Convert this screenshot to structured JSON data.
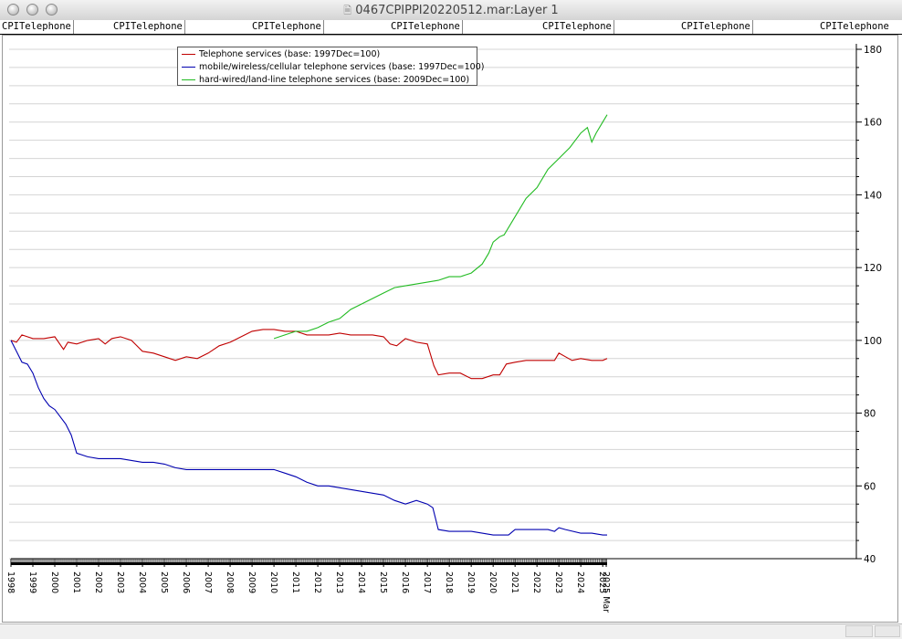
{
  "window": {
    "title": "0467CPIPPI20220512.mar:Layer 1",
    "tabs": [
      "CPITelephone",
      "CPITelephone",
      "CPITelephone",
      "CPITelephone",
      "CPITelephone",
      "CPITelephone",
      "CPITelephone"
    ]
  },
  "colors": {
    "telephone": "#c00000",
    "mobile": "#0000b0",
    "landline": "#22bb22",
    "grid": "#d4d4d4",
    "axis": "#000000"
  },
  "chart_data": {
    "type": "line",
    "y_ticks": [
      40,
      60,
      80,
      100,
      120,
      140,
      160,
      180
    ],
    "ylim": [
      40,
      180
    ],
    "xlim": [
      1998.0,
      2025.2
    ],
    "x_tick_labels": [
      "1998",
      "1999",
      "2000",
      "2001",
      "2002",
      "2003",
      "2004",
      "2005",
      "2006",
      "2007",
      "2008",
      "2009",
      "2010",
      "2011",
      "2012",
      "2013",
      "2014",
      "2015",
      "2016",
      "2017",
      "2018",
      "2019",
      "2020",
      "2021",
      "2022",
      "2023",
      "2024",
      "2025",
      "2025 Mar"
    ],
    "legend_position": "top-left",
    "grid": true,
    "series": [
      {
        "name": "Telephone services (base: 1997Dec=100)",
        "color_key": "telephone",
        "x": [
          1998.0,
          1998.25,
          1998.5,
          1998.75,
          1999.0,
          1999.5,
          2000.0,
          2000.4,
          2000.6,
          2001.0,
          2001.5,
          2002.0,
          2002.3,
          2002.6,
          2003.0,
          2003.5,
          2004.0,
          2004.5,
          2005.0,
          2005.5,
          2006.0,
          2006.5,
          2007.0,
          2007.5,
          2008.0,
          2008.5,
          2009.0,
          2009.5,
          2010.0,
          2010.5,
          2011.0,
          2011.5,
          2012.0,
          2012.5,
          2013.0,
          2013.5,
          2014.0,
          2014.5,
          2015.0,
          2015.3,
          2015.6,
          2016.0,
          2016.5,
          2017.0,
          2017.3,
          2017.5,
          2018.0,
          2018.5,
          2019.0,
          2019.5,
          2020.0,
          2020.3,
          2020.6,
          2021.0,
          2021.5,
          2022.0,
          2022.5,
          2022.8,
          2023.0,
          2023.3,
          2023.6,
          2024.0,
          2024.5,
          2025.0,
          2025.2
        ],
        "y": [
          100,
          99.5,
          101.5,
          101,
          100.5,
          100.5,
          101,
          97.5,
          99.5,
          99,
          100,
          100.5,
          99,
          100.5,
          101,
          100,
          97,
          96.5,
          95.5,
          94.5,
          95.5,
          95,
          96.5,
          98.5,
          99.5,
          101,
          102.5,
          103,
          103,
          102.5,
          102.5,
          101.5,
          101.5,
          101.5,
          102,
          101.5,
          101.5,
          101.5,
          101,
          99,
          98.5,
          100.5,
          99.5,
          99,
          93,
          90.5,
          91,
          91,
          89.5,
          89.5,
          90.5,
          90.5,
          93.5,
          94,
          94.5,
          94.5,
          94.5,
          94.5,
          96.5,
          95.5,
          94.5,
          95,
          94.5,
          94.5,
          95
        ]
      },
      {
        "name": "mobile/wireless/cellular telephone services (base: 1997Dec=100)",
        "color_key": "mobile",
        "x": [
          1998.0,
          1998.25,
          1998.5,
          1998.75,
          1999.0,
          1999.25,
          1999.5,
          1999.75,
          2000.0,
          2000.25,
          2000.5,
          2000.75,
          2001.0,
          2001.25,
          2001.5,
          2002.0,
          2002.5,
          2003.0,
          2003.5,
          2004.0,
          2004.5,
          2005.0,
          2005.5,
          2006.0,
          2006.5,
          2007.0,
          2007.5,
          2008.0,
          2008.5,
          2009.0,
          2009.5,
          2010.0,
          2010.5,
          2011.0,
          2011.5,
          2012.0,
          2012.5,
          2013.0,
          2013.5,
          2014.0,
          2014.5,
          2015.0,
          2015.5,
          2016.0,
          2016.5,
          2017.0,
          2017.25,
          2017.5,
          2018.0,
          2018.5,
          2019.0,
          2019.5,
          2020.0,
          2020.5,
          2020.7,
          2021.0,
          2021.5,
          2022.0,
          2022.5,
          2022.8,
          2023.0,
          2023.3,
          2024.0,
          2024.5,
          2025.0,
          2025.2
        ],
        "y": [
          100,
          97,
          94,
          93.5,
          91,
          87,
          84,
          82,
          81,
          79,
          77,
          74,
          69,
          68.5,
          68,
          67.5,
          67.5,
          67.5,
          67,
          66.5,
          66.5,
          66,
          65,
          64.5,
          64.5,
          64.5,
          64.5,
          64.5,
          64.5,
          64.5,
          64.5,
          64.5,
          63.5,
          62.5,
          61,
          60,
          60,
          59.5,
          59,
          58.5,
          58,
          57.5,
          56,
          55,
          56,
          55,
          54,
          48,
          47.5,
          47.5,
          47.5,
          47,
          46.5,
          46.5,
          46.5,
          48,
          48,
          48,
          48,
          47.5,
          48.5,
          48,
          47,
          47,
          46.5,
          46.5
        ]
      },
      {
        "name": "hard-wired/land-line telephone services (base: 2009Dec=100)",
        "color_key": "landline",
        "x": [
          2010.0,
          2010.5,
          2011.0,
          2011.5,
          2012.0,
          2012.5,
          2013.0,
          2013.5,
          2014.0,
          2014.5,
          2015.0,
          2015.5,
          2016.0,
          2016.5,
          2017.0,
          2017.5,
          2018.0,
          2018.5,
          2019.0,
          2019.5,
          2019.8,
          2020.0,
          2020.3,
          2020.5,
          2021.0,
          2021.5,
          2022.0,
          2022.5,
          2023.0,
          2023.5,
          2024.0,
          2024.3,
          2024.5,
          2024.7,
          2025.0,
          2025.2
        ],
        "y": [
          100.5,
          101.5,
          102.5,
          102.5,
          103.5,
          105,
          106,
          108.5,
          110,
          111.5,
          113,
          114.5,
          115,
          115.5,
          116,
          116.5,
          117.5,
          117.5,
          118.5,
          121,
          124,
          127,
          128.5,
          129,
          134,
          139,
          142,
          147,
          150,
          153,
          157,
          158.5,
          154.5,
          157,
          160,
          162
        ]
      }
    ]
  }
}
